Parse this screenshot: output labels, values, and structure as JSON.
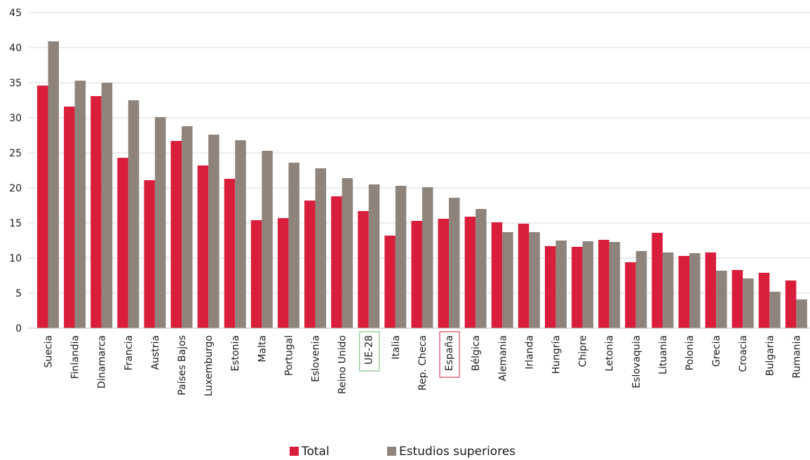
{
  "chart_data": {
    "type": "bar",
    "title": "",
    "xlabel": "",
    "ylabel": "",
    "ylim": [
      0,
      45
    ],
    "yticks": [
      0,
      5,
      10,
      15,
      20,
      25,
      30,
      35,
      40,
      45
    ],
    "grid": true,
    "legend_position": "bottom",
    "categories": [
      "Suecia",
      "Finlandia",
      "Dinamarca",
      "Francia",
      "Austria",
      "Países Bajos",
      "Luxemburgo",
      "Estonia",
      "Malta",
      "Portugal",
      "Eslovenia",
      "Reino Unido",
      "UE-28",
      "Italia",
      "Rep. Checa",
      "España",
      "Bélgica",
      "Alemania",
      "Irlanda",
      "Hungría",
      "Chipre",
      "Letonia",
      "Eslovaquia",
      "Lituania",
      "Polonia",
      "Grecia",
      "Croacia",
      "Bulgaria",
      "Rumania"
    ],
    "highlighted_categories": [
      {
        "name": "UE-28",
        "color": "#6cb86c"
      },
      {
        "name": "España",
        "color": "#d81e3a"
      }
    ],
    "series": [
      {
        "name": "Total",
        "color": "#d81e3a",
        "values": [
          34.6,
          31.6,
          33.1,
          24.3,
          21.1,
          26.7,
          23.2,
          21.3,
          15.4,
          15.7,
          18.2,
          18.8,
          16.7,
          13.2,
          15.3,
          15.6,
          15.9,
          15.1,
          14.9,
          11.7,
          11.6,
          12.6,
          9.4,
          13.6,
          10.3,
          10.8,
          8.3,
          7.9,
          6.8
        ]
      },
      {
        "name": "Estudios superiores",
        "color": "#8f847c",
        "values": [
          40.9,
          35.3,
          35.0,
          32.5,
          30.1,
          28.8,
          27.6,
          26.8,
          25.3,
          23.6,
          22.8,
          21.4,
          20.5,
          20.3,
          20.1,
          18.6,
          17.0,
          13.7,
          13.7,
          12.5,
          12.4,
          12.3,
          11.0,
          10.8,
          10.7,
          8.2,
          7.1,
          5.2,
          4.1
        ]
      }
    ]
  }
}
